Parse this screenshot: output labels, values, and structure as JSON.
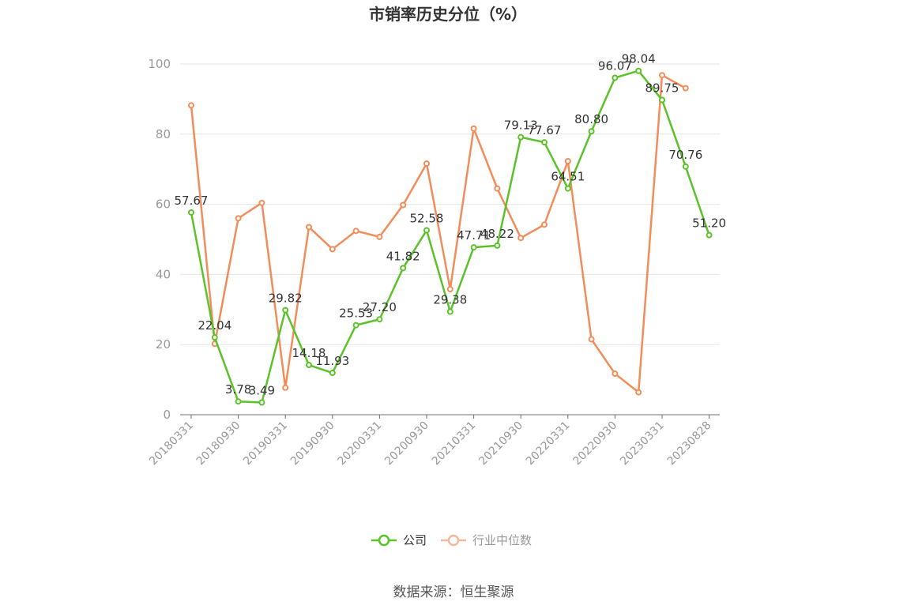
{
  "chart_data": {
    "type": "line",
    "title": "市销率历史分位（%）",
    "xlabel": "",
    "ylabel": "",
    "ylim": [
      0,
      100
    ],
    "yticks": [
      0,
      20,
      40,
      60,
      80,
      100
    ],
    "grid": true,
    "legend_placement": "bottom-center",
    "x": [
      "20180331",
      "20180630",
      "20180930",
      "20181231",
      "20190331",
      "20190630",
      "20190930",
      "20191231",
      "20200331",
      "20200630",
      "20200930",
      "20201231",
      "20210331",
      "20210630",
      "20210930",
      "20211231",
      "20220331",
      "20220630",
      "20220930",
      "20221231",
      "20230331",
      "20230630",
      "20230828"
    ],
    "x_tick_labels": [
      "20180331",
      "20180930",
      "20190331",
      "20190930",
      "20200331",
      "20200930",
      "20210331",
      "20210930",
      "20220331",
      "20220930",
      "20230331",
      "20230828"
    ],
    "series": [
      {
        "name": "公司",
        "color": "#5cc22a",
        "values": [
          57.67,
          22.04,
          3.78,
          3.49,
          29.82,
          14.18,
          11.93,
          25.53,
          27.2,
          41.82,
          52.58,
          29.38,
          47.71,
          48.22,
          79.13,
          77.67,
          64.51,
          80.8,
          96.07,
          98.04,
          89.75,
          70.76,
          51.2
        ],
        "labels": [
          "57.67",
          "22.04",
          "3.78",
          "3.49",
          "29.82",
          "14.18",
          "11.93",
          "25.53",
          "27.20",
          "41.82",
          "52.58",
          "29.38",
          "47.71",
          "48.22",
          "79.13",
          "77.67",
          "64.51",
          "80.80",
          "96.07",
          "98.04",
          "89.75",
          "70.76",
          "51.20"
        ]
      },
      {
        "name": "行业中位数",
        "color": "#f28c5a",
        "values": [
          88.2,
          20.2,
          56.0,
          60.4,
          7.7,
          53.5,
          47.2,
          52.4,
          50.7,
          59.8,
          71.6,
          35.8,
          81.6,
          64.5,
          50.4,
          54.2,
          72.3,
          21.5,
          11.7,
          6.4,
          96.8,
          93.1,
          null
        ]
      }
    ]
  },
  "legend": {
    "items": [
      {
        "label": "公司",
        "color": "#5cc22a",
        "text_color": "#333333"
      },
      {
        "label": "行业中位数",
        "color": "#f7b79a",
        "text_color": "#999999"
      }
    ]
  },
  "footer": {
    "source": "数据来源：恒生聚源"
  }
}
